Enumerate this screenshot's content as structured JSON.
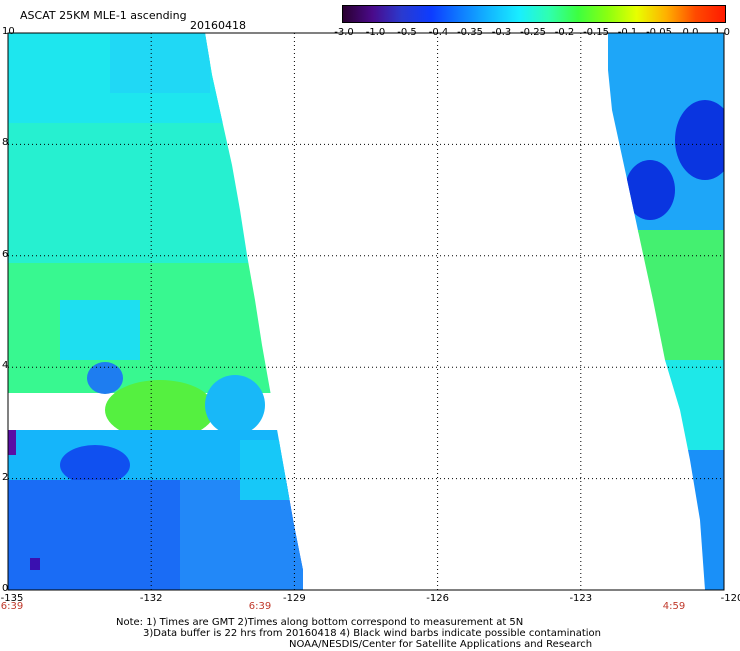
{
  "header": {
    "title": "ASCAT 25KM MLE-1 ascending",
    "date": "20160418"
  },
  "colorbar": {
    "labels": [
      "-3.0",
      "-1.0",
      "-0.5",
      "-0.4",
      "-0.35",
      "-0.3",
      "-0.25",
      "-0.2",
      "-0.15",
      "-0.1",
      "-0.05",
      "0.0",
      "1.0"
    ],
    "colors": [
      "#2a0030",
      "#4a0a8a",
      "#2a3acf",
      "#0d3cff",
      "#0f7cff",
      "#13b8ff",
      "#19eeff",
      "#2fffb0",
      "#3dff40",
      "#8aff10",
      "#e8ff00",
      "#ffb000",
      "#ff4a00",
      "#ff1a00"
    ]
  },
  "axes": {
    "y_ticks": [
      "0",
      "2",
      "4",
      "6",
      "8",
      "10"
    ],
    "x_ticks": [
      "-135",
      "-132",
      "-129",
      "-126",
      "-123",
      "-120"
    ],
    "time_labels": [
      "6:39",
      "6:39",
      "4:59"
    ]
  },
  "notes": {
    "line1": "Note: 1) Times are GMT 2)Times along bottom correspond to measurement at 5N",
    "line2": "3)Data buffer is 22 hrs from 20160418 4) Black wind barbs indicate possible contamination",
    "line3": "NOAA/NESDIS/Center for Satellite Applications and Research"
  }
}
